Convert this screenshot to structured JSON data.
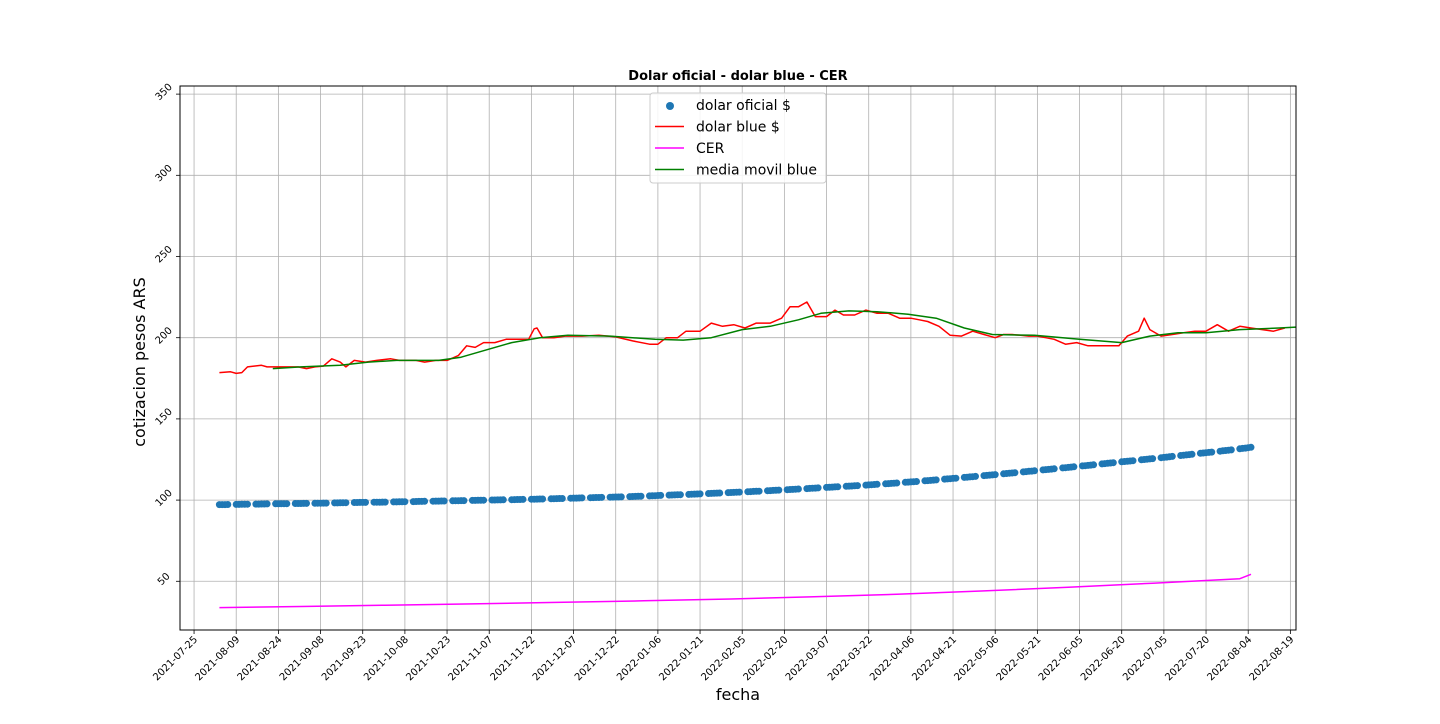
{
  "chart_data": {
    "type": "line",
    "title": "Dolar oficial - dolar blue - CER",
    "xlabel": "fecha",
    "ylabel": "cotizacion pesos ARS",
    "x_axis_type": "date",
    "xlim": [
      "2021-07-20",
      "2022-08-21"
    ],
    "ylim": [
      20,
      355
    ],
    "x_ticks": [
      "2021-07-25",
      "2021-08-09",
      "2021-08-24",
      "2021-09-08",
      "2021-09-23",
      "2021-10-08",
      "2021-10-23",
      "2021-11-07",
      "2021-11-22",
      "2021-12-07",
      "2021-12-22",
      "2022-01-06",
      "2022-01-21",
      "2022-02-05",
      "2022-02-20",
      "2022-03-07",
      "2022-03-22",
      "2022-04-06",
      "2022-04-21",
      "2022-05-06",
      "2022-05-21",
      "2022-06-05",
      "2022-06-20",
      "2022-07-05",
      "2022-07-20",
      "2022-08-04",
      "2022-08-19"
    ],
    "y_ticks": [
      50,
      100,
      150,
      200,
      250,
      300,
      350
    ],
    "grid": true,
    "legend_position": "top-center",
    "series": [
      {
        "name": "dolar oficial $",
        "kind": "scatter",
        "color": "#1f77b4",
        "points": [
          [
            "2021-08-03",
            97.2
          ],
          [
            "2021-08-15",
            97.5
          ],
          [
            "2021-08-27",
            97.8
          ],
          [
            "2021-09-08",
            98.1
          ],
          [
            "2021-09-20",
            98.5
          ],
          [
            "2021-10-02",
            98.8
          ],
          [
            "2021-10-14",
            99.2
          ],
          [
            "2021-10-26",
            99.6
          ],
          [
            "2021-11-07",
            100.0
          ],
          [
            "2021-11-19",
            100.4
          ],
          [
            "2021-12-01",
            100.9
          ],
          [
            "2021-12-13",
            101.5
          ],
          [
            "2021-12-25",
            102.0
          ],
          [
            "2022-01-06",
            102.8
          ],
          [
            "2022-01-18",
            103.6
          ],
          [
            "2022-01-30",
            104.5
          ],
          [
            "2022-02-11",
            105.5
          ],
          [
            "2022-02-23",
            106.6
          ],
          [
            "2022-03-07",
            107.8
          ],
          [
            "2022-03-19",
            109.0
          ],
          [
            "2022-03-31",
            110.4
          ],
          [
            "2022-04-12",
            112.0
          ],
          [
            "2022-04-24",
            113.8
          ],
          [
            "2022-05-06",
            115.7
          ],
          [
            "2022-05-18",
            117.7
          ],
          [
            "2022-05-30",
            119.8
          ],
          [
            "2022-06-11",
            121.9
          ],
          [
            "2022-06-23",
            124.1
          ],
          [
            "2022-07-05",
            126.3
          ],
          [
            "2022-07-17",
            128.6
          ],
          [
            "2022-07-29",
            130.9
          ],
          [
            "2022-08-05",
            132.5
          ]
        ]
      },
      {
        "name": "dolar blue $",
        "kind": "line",
        "color": "#ff0000",
        "points": [
          [
            "2021-08-03",
            178.5
          ],
          [
            "2021-08-07",
            179.0
          ],
          [
            "2021-08-09",
            178.0
          ],
          [
            "2021-08-11",
            178.5
          ],
          [
            "2021-08-13",
            182.0
          ],
          [
            "2021-08-18",
            183.0
          ],
          [
            "2021-08-20",
            182.0
          ],
          [
            "2021-08-27",
            182.0
          ],
          [
            "2021-08-31",
            182.0
          ],
          [
            "2021-09-03",
            181.0
          ],
          [
            "2021-09-06",
            182.0
          ],
          [
            "2021-09-09",
            182.5
          ],
          [
            "2021-09-12",
            187.0
          ],
          [
            "2021-09-15",
            185.0
          ],
          [
            "2021-09-17",
            182.0
          ],
          [
            "2021-09-20",
            186.0
          ],
          [
            "2021-09-24",
            185.0
          ],
          [
            "2021-09-28",
            186.0
          ],
          [
            "2021-10-03",
            187.0
          ],
          [
            "2021-10-06",
            186.0
          ],
          [
            "2021-10-12",
            186.0
          ],
          [
            "2021-10-15",
            185.0
          ],
          [
            "2021-10-19",
            186.0
          ],
          [
            "2021-10-23",
            186.0
          ],
          [
            "2021-10-27",
            189.0
          ],
          [
            "2021-10-30",
            195.0
          ],
          [
            "2021-11-02",
            194.0
          ],
          [
            "2021-11-05",
            197.0
          ],
          [
            "2021-11-09",
            197.0
          ],
          [
            "2021-11-13",
            199.0
          ],
          [
            "2021-11-18",
            199.0
          ],
          [
            "2021-11-21",
            199.0
          ],
          [
            "2021-11-23",
            205.5
          ],
          [
            "2021-11-24",
            206.0
          ],
          [
            "2021-11-26",
            200.0
          ],
          [
            "2021-11-30",
            200.0
          ],
          [
            "2021-12-04",
            201.0
          ],
          [
            "2021-12-10",
            201.0
          ],
          [
            "2021-12-16",
            201.5
          ],
          [
            "2021-12-22",
            200.5
          ],
          [
            "2021-12-28",
            198.0
          ],
          [
            "2022-01-03",
            196.0
          ],
          [
            "2022-01-06",
            196.0
          ],
          [
            "2022-01-09",
            200.0
          ],
          [
            "2022-01-13",
            200.0
          ],
          [
            "2022-01-16",
            204.0
          ],
          [
            "2022-01-21",
            204.0
          ],
          [
            "2022-01-25",
            209.0
          ],
          [
            "2022-01-29",
            207.0
          ],
          [
            "2022-02-02",
            208.0
          ],
          [
            "2022-02-06",
            206.0
          ],
          [
            "2022-02-10",
            209.0
          ],
          [
            "2022-02-15",
            209.0
          ],
          [
            "2022-02-19",
            212.0
          ],
          [
            "2022-02-22",
            219.0
          ],
          [
            "2022-02-25",
            219.0
          ],
          [
            "2022-02-28",
            222.0
          ],
          [
            "2022-03-03",
            213.0
          ],
          [
            "2022-03-07",
            213.0
          ],
          [
            "2022-03-10",
            217.0
          ],
          [
            "2022-03-13",
            214.0
          ],
          [
            "2022-03-17",
            214.0
          ],
          [
            "2022-03-21",
            217.0
          ],
          [
            "2022-03-25",
            215.0
          ],
          [
            "2022-03-29",
            215.0
          ],
          [
            "2022-04-02",
            212.0
          ],
          [
            "2022-04-06",
            212.0
          ],
          [
            "2022-04-09",
            211.0
          ],
          [
            "2022-04-12",
            210.0
          ],
          [
            "2022-04-16",
            207.0
          ],
          [
            "2022-04-20",
            201.5
          ],
          [
            "2022-04-24",
            201.0
          ],
          [
            "2022-04-28",
            204.0
          ],
          [
            "2022-05-02",
            202.0
          ],
          [
            "2022-05-06",
            200.0
          ],
          [
            "2022-05-09",
            202.0
          ],
          [
            "2022-05-12",
            202.0
          ],
          [
            "2022-05-15",
            201.5
          ],
          [
            "2022-05-18",
            201.0
          ],
          [
            "2022-05-21",
            201.0
          ],
          [
            "2022-05-24",
            200.0
          ],
          [
            "2022-05-27",
            199.0
          ],
          [
            "2022-05-31",
            196.0
          ],
          [
            "2022-06-04",
            197.0
          ],
          [
            "2022-06-08",
            195.0
          ],
          [
            "2022-06-12",
            195.0
          ],
          [
            "2022-06-16",
            195.0
          ],
          [
            "2022-06-19",
            195.0
          ],
          [
            "2022-06-22",
            201.0
          ],
          [
            "2022-06-26",
            204.0
          ],
          [
            "2022-06-28",
            212.0
          ],
          [
            "2022-06-30",
            205.0
          ],
          [
            "2022-07-04",
            201.0
          ],
          [
            "2022-07-08",
            202.0
          ],
          [
            "2022-07-12",
            203.0
          ],
          [
            "2022-07-16",
            204.0
          ],
          [
            "2022-07-20",
            204.0
          ],
          [
            "2022-07-24",
            208.0
          ],
          [
            "2022-07-28",
            204.0
          ],
          [
            "2022-08-01",
            207.0
          ],
          [
            "2022-08-05",
            206.0
          ],
          [
            "2022-08-09",
            205.0
          ],
          [
            "2022-08-13",
            204.0
          ],
          [
            "2022-08-17",
            206.0
          ]
        ]
      },
      {
        "name": "CER",
        "kind": "line",
        "color": "#ff00ff",
        "points": [
          [
            "2021-08-03",
            33.8
          ],
          [
            "2021-09-01",
            34.5
          ],
          [
            "2021-10-01",
            35.3
          ],
          [
            "2021-11-01",
            36.1
          ],
          [
            "2021-12-01",
            37.0
          ],
          [
            "2022-01-01",
            38.0
          ],
          [
            "2022-02-01",
            39.1
          ],
          [
            "2022-03-01",
            40.4
          ],
          [
            "2022-04-01",
            42.0
          ],
          [
            "2022-05-01",
            44.0
          ],
          [
            "2022-06-01",
            46.3
          ],
          [
            "2022-07-01",
            48.8
          ],
          [
            "2022-08-01",
            51.6
          ],
          [
            "2022-08-05",
            54.3
          ]
        ]
      },
      {
        "name": "media movil blue",
        "kind": "line",
        "color": "#008000",
        "points": [
          [
            "2021-08-22",
            181.0
          ],
          [
            "2021-09-01",
            182.0
          ],
          [
            "2021-09-15",
            183.0
          ],
          [
            "2021-09-25",
            185.0
          ],
          [
            "2021-10-05",
            186.0
          ],
          [
            "2021-10-20",
            186.0
          ],
          [
            "2021-10-28",
            188.0
          ],
          [
            "2021-11-05",
            192.0
          ],
          [
            "2021-11-15",
            197.0
          ],
          [
            "2021-11-25",
            200.0
          ],
          [
            "2021-12-05",
            201.5
          ],
          [
            "2021-12-20",
            201.0
          ],
          [
            "2022-01-05",
            199.0
          ],
          [
            "2022-01-15",
            198.5
          ],
          [
            "2022-01-25",
            200.0
          ],
          [
            "2022-02-05",
            205.0
          ],
          [
            "2022-02-15",
            207.0
          ],
          [
            "2022-02-25",
            211.0
          ],
          [
            "2022-03-05",
            215.0
          ],
          [
            "2022-03-15",
            216.5
          ],
          [
            "2022-03-25",
            216.0
          ],
          [
            "2022-04-05",
            214.5
          ],
          [
            "2022-04-15",
            212.0
          ],
          [
            "2022-04-25",
            206.0
          ],
          [
            "2022-05-05",
            202.0
          ],
          [
            "2022-05-20",
            201.5
          ],
          [
            "2022-06-05",
            199.0
          ],
          [
            "2022-06-20",
            197.0
          ],
          [
            "2022-06-30",
            201.0
          ],
          [
            "2022-07-10",
            203.0
          ],
          [
            "2022-07-20",
            203.0
          ],
          [
            "2022-08-01",
            205.0
          ],
          [
            "2022-08-15",
            206.0
          ],
          [
            "2022-08-21",
            206.5
          ]
        ]
      }
    ]
  }
}
